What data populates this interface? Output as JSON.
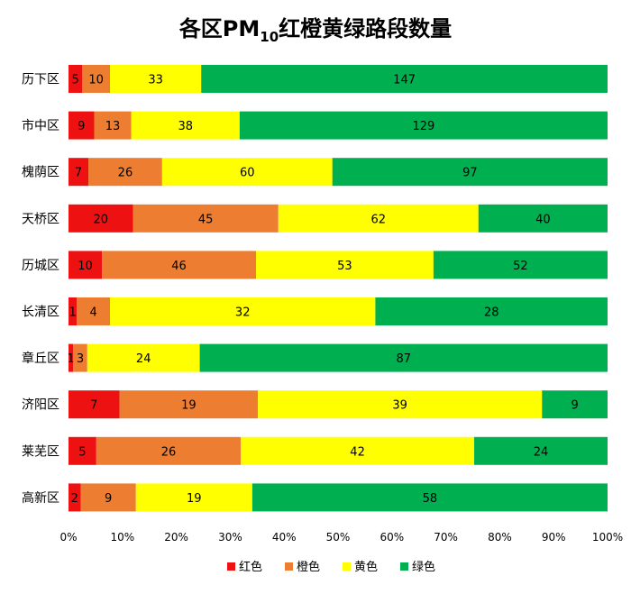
{
  "chart_data": {
    "type": "bar",
    "orientation": "horizontal",
    "stacked": "percent",
    "title": {
      "main": "各区PM",
      "subscript": "10",
      "rest": "红橙黄绿路段数量"
    },
    "categories": [
      "历下区",
      "市中区",
      "槐荫区",
      "天桥区",
      "历城区",
      "长清区",
      "章丘区",
      "济阳区",
      "莱芜区",
      "高新区"
    ],
    "series": [
      {
        "name": "红色",
        "color": "#ee1111",
        "values": [
          5,
          9,
          7,
          20,
          10,
          1,
          1,
          7,
          5,
          2
        ]
      },
      {
        "name": "橙色",
        "color": "#ed7d31",
        "values": [
          10,
          13,
          26,
          45,
          46,
          4,
          3,
          19,
          26,
          9
        ]
      },
      {
        "name": "黄色",
        "color": "#ffff00",
        "values": [
          33,
          38,
          60,
          62,
          53,
          32,
          24,
          39,
          42,
          19
        ]
      },
      {
        "name": "绿色",
        "color": "#00b050",
        "values": [
          147,
          129,
          97,
          40,
          52,
          28,
          87,
          9,
          24,
          58
        ]
      }
    ],
    "x_ticks": [
      "0%",
      "10%",
      "20%",
      "30%",
      "40%",
      "50%",
      "60%",
      "70%",
      "80%",
      "90%",
      "100%"
    ],
    "xlim": [
      0,
      100
    ],
    "legend_position": "bottom",
    "grid": false
  }
}
